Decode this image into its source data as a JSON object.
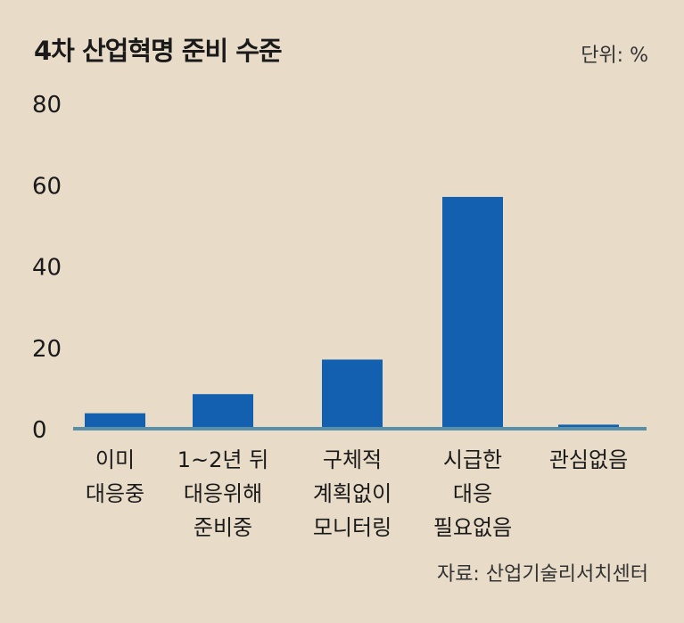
{
  "chart_data": {
    "type": "bar",
    "title": "4차 산업혁명 준비 수준",
    "unit": "단위: %",
    "source": "자료: 산업기술리서치센터",
    "categories": [
      [
        "이미",
        "대응중"
      ],
      [
        "1~2년 뒤",
        "대응위해",
        "준비중"
      ],
      [
        "구체적",
        "계획없이",
        "모니터링"
      ],
      [
        "시급한",
        "대응",
        "필요없음"
      ],
      [
        "관심없음"
      ]
    ],
    "values": [
      3.8,
      8.5,
      17.0,
      57.0,
      1.0
    ],
    "ylim": [
      0,
      80
    ],
    "yticks": [
      0,
      20,
      40,
      60,
      80
    ],
    "bar_color": "#1360b1",
    "axis_color": "#5a8fa8",
    "grid": false
  }
}
